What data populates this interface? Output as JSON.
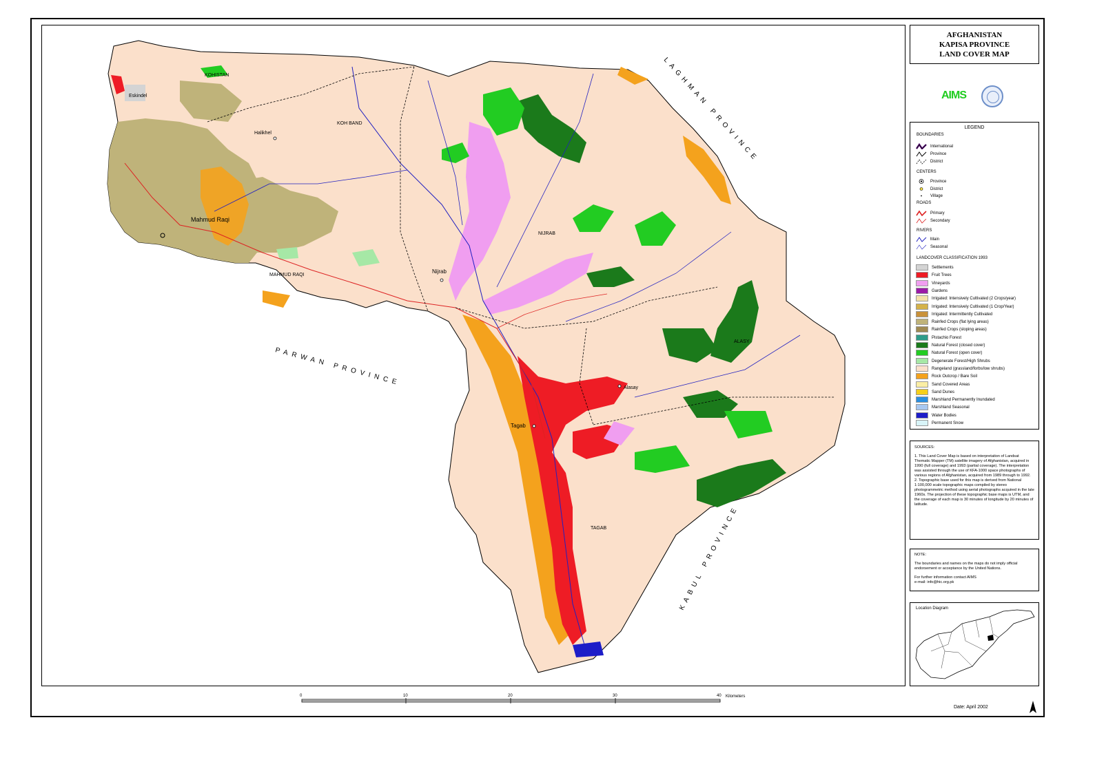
{
  "title": {
    "line1": "AFGHANISTAN",
    "line2": "KAPISA PROVINCE",
    "line3": "LAND COVER MAP"
  },
  "logo": {
    "text": "AIMS",
    "emblem": "un-emblem-icon"
  },
  "legend": {
    "heading": "LEGEND",
    "boundaries": {
      "heading": "BOUNDARIES",
      "items": [
        "International",
        "Province",
        "District"
      ]
    },
    "centers": {
      "heading": "CENTERS",
      "items": [
        "Province",
        "District",
        "Village"
      ]
    },
    "roads": {
      "heading": "ROADS",
      "items": [
        "Primary",
        "Secondary"
      ]
    },
    "rivers": {
      "heading": "RIVERS",
      "items": [
        "Main",
        "Seasonal"
      ]
    },
    "landcover": {
      "heading": "LANDCOVER CLASSIFICATION 1993",
      "items": [
        {
          "label": "Settlements",
          "color": "#d4d4d4"
        },
        {
          "label": "Fruit Trees",
          "color": "#ee1c25"
        },
        {
          "label": "Vineyards",
          "color": "#f09ef0"
        },
        {
          "label": "Gardens",
          "color": "#9b1aa8"
        },
        {
          "label": "Irrigated: Intensively Cultivated (2 Crops/year)",
          "color": "#f3e2a9"
        },
        {
          "label": "Irrigated: Intensively Cultivated (1 Crop/Year)",
          "color": "#d4b24a"
        },
        {
          "label": "Irrigated: Intermittently Cultivated",
          "color": "#c9913a"
        },
        {
          "label": "Rainfed Crops (flat lying areas)",
          "color": "#bfb37a"
        },
        {
          "label": "Rainfed Crops (sloping areas)",
          "color": "#a08a52"
        },
        {
          "label": "Pistachio Forest",
          "color": "#2e9c8a"
        },
        {
          "label": "Natural Forest (closed cover)",
          "color": "#1b7a1b"
        },
        {
          "label": "Natural Forest (open cover)",
          "color": "#22cc22"
        },
        {
          "label": "Degenerate Forest/High Shrubs",
          "color": "#a6e8a6"
        },
        {
          "label": "Rangeland (grassland/forbs/low shrubs)",
          "color": "#fbe0cb"
        },
        {
          "label": "Rock Outcrop / Bare Soil",
          "color": "#f4a21d"
        },
        {
          "label": "Sand Covered Areas",
          "color": "#fbeea4"
        },
        {
          "label": "Sand Dunes",
          "color": "#f6cf1a"
        },
        {
          "label": "Marshland Permanently Inundated",
          "color": "#2a8fe0"
        },
        {
          "label": "Marshland Seasonal",
          "color": "#a8c8f0"
        },
        {
          "label": "Water Bodies",
          "color": "#1d1dc8"
        },
        {
          "label": "Permanent Snow",
          "color": "#d8f4f8"
        }
      ]
    }
  },
  "sources": {
    "heading": "SOURCES:",
    "p1": "1. This Land Cover Map is based on interpretation of Landsat Thematic Mapper (TM) satellite imagery of Afghanistan, acquired in 1990 (full coverage) and 1993 (partial coverage). The interpretation was assisted through the use of KFA-1000 space photographs of various regions of Afghanistan, acquired from 1989 through to 1992.",
    "p2": "2. Topographic base used for this map is derived from National 1:100,000 scale topographic maps compiled by stereo photogrammetric method using aerial photographs acquired in the late 1960s. The projection of these topographic base maps is UTM, and the coverage of each map is 30 minutes of longitude by 20 minutes of latitude."
  },
  "note": {
    "heading": "NOTE:",
    "text": "The boundaries and names on the maps do not imply official endorsement or acceptance by the United Nations.",
    "contact": "For further information contact AIMS",
    "email": "e-mail: info@hic.org.pk"
  },
  "location_diagram": {
    "label": "Location Diagram"
  },
  "scale": {
    "ticks": [
      "0",
      "10",
      "20",
      "30",
      "40"
    ],
    "unit": "Kilometers"
  },
  "date": "Date: April 2002",
  "neighbors": {
    "north": "LAGHMAN PROVINCE",
    "west": "PARWAN PROVINCE",
    "south": "KABUL PROVINCE"
  },
  "districts": [
    "KOHISTAN",
    "KOH BAND",
    "NIJRAB",
    "MAHMUD RAQI",
    "ALASY",
    "TAGAB"
  ],
  "centers": [
    "Mahmud Raqi",
    "Halikhel",
    "Nijrab",
    "Tagab",
    "Alasay",
    "Eskindel"
  ]
}
